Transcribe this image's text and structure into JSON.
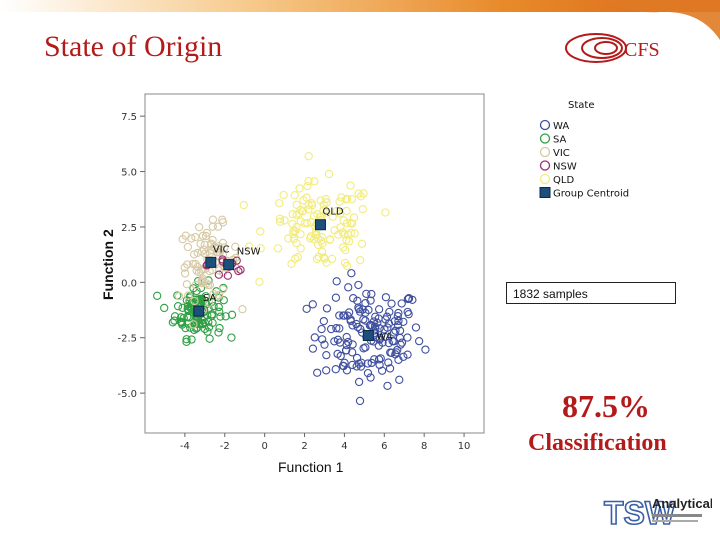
{
  "slide": {
    "title": "State of Origin",
    "logo_text": "CFS",
    "samples_text": "1832 samples",
    "accuracy": "87.5%",
    "accuracy_label": "Classification",
    "tsw_logo_text": "TSW",
    "tsw_logo_sub": "Analytical",
    "colors": {
      "title": "#b31b1b",
      "accent": "#e88a2a"
    }
  },
  "chart_data": {
    "type": "scatter",
    "xlabel": "Function 1",
    "ylabel": "Function 2",
    "xlim": [
      -6,
      11
    ],
    "ylim": [
      -6.8,
      8.5
    ],
    "xticks": [
      -4,
      -2,
      0,
      2,
      4,
      6,
      8,
      10
    ],
    "xtick_labels": [
      "-4",
      "-2",
      "0",
      "2",
      "4",
      "6",
      "8",
      "10"
    ],
    "yticks": [
      -5.0,
      -2.5,
      0.0,
      2.5,
      5.0,
      7.5
    ],
    "ytick_labels": [
      "-5.0",
      "-2.5",
      "0.0",
      "2.5",
      "5.0",
      "7.5"
    ],
    "grid": false,
    "legend_title": "State",
    "legend_position": "top-right",
    "legend": [
      {
        "name": "WA",
        "color": "#3f4fa0",
        "marker": "circle"
      },
      {
        "name": "SA",
        "color": "#2ea043",
        "marker": "circle"
      },
      {
        "name": "VIC",
        "color": "#d6c9a4",
        "marker": "circle"
      },
      {
        "name": "NSW",
        "color": "#9a2f6f",
        "marker": "circle"
      },
      {
        "name": "QLD",
        "color": "#f2ec7e",
        "marker": "circle"
      },
      {
        "name": "Group Centroid",
        "color": "#1d4f7c",
        "marker": "square"
      }
    ],
    "series": [
      {
        "name": "WA",
        "color": "#3f4fa0",
        "center": [
          5.2,
          -2.4
        ],
        "spread": [
          1.8,
          1.5
        ],
        "count": 150
      },
      {
        "name": "SA",
        "color": "#2ea043",
        "center": [
          -3.3,
          -1.3
        ],
        "spread": [
          0.8,
          0.8
        ],
        "count": 110
      },
      {
        "name": "VIC",
        "color": "#d6c9a4",
        "center": [
          -2.8,
          0.9
        ],
        "spread": [
          1.0,
          1.1
        ],
        "count": 90
      },
      {
        "name": "NSW",
        "color": "#9a2f6f",
        "center": [
          -1.8,
          0.8
        ],
        "spread": [
          0.7,
          0.6
        ],
        "count": 14
      },
      {
        "name": "QLD",
        "color": "#f2ec7e",
        "center": [
          2.8,
          2.5
        ],
        "spread": [
          1.8,
          1.3
        ],
        "count": 120
      }
    ],
    "centroids": [
      {
        "label": "WA",
        "x": 5.2,
        "y": -2.4
      },
      {
        "label": "SA",
        "x": -3.3,
        "y": -1.3
      },
      {
        "label": "VIC",
        "x": -2.7,
        "y": 0.9
      },
      {
        "label": "NSW",
        "x": -1.8,
        "y": 0.8
      },
      {
        "label": "QLD",
        "x": 2.8,
        "y": 2.6
      }
    ]
  }
}
